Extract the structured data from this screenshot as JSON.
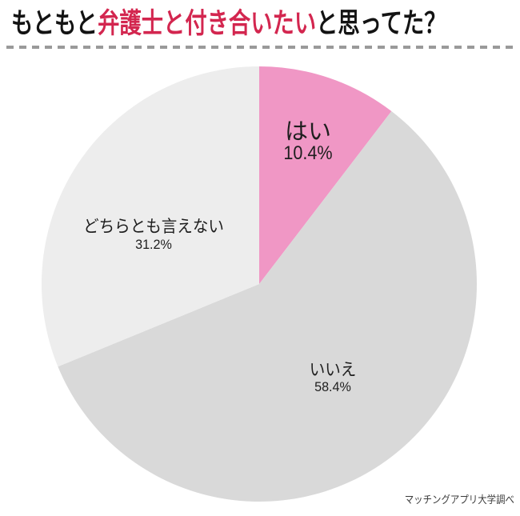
{
  "title": {
    "prefix": "もともと",
    "highlight": "弁護士と付き合いたい",
    "suffix": "と思ってた？",
    "highlight_color": "#d3264f"
  },
  "chart_data": {
    "type": "pie",
    "title": "もともと弁護士と付き合いたいと思ってた？",
    "slices": [
      {
        "label": "はい",
        "value": 10.4,
        "display": "10.4%",
        "color": "#f097c5"
      },
      {
        "label": "いいえ",
        "value": 58.4,
        "display": "58.4%",
        "color": "#d9d9d9"
      },
      {
        "label": "どちらとも言えない",
        "value": 31.2,
        "display": "31.2%",
        "color": "#ededed"
      }
    ],
    "start_angle_deg": -90,
    "direction": "clockwise",
    "legend": "none"
  },
  "source_note": "マッチングアプリ大学調べ"
}
